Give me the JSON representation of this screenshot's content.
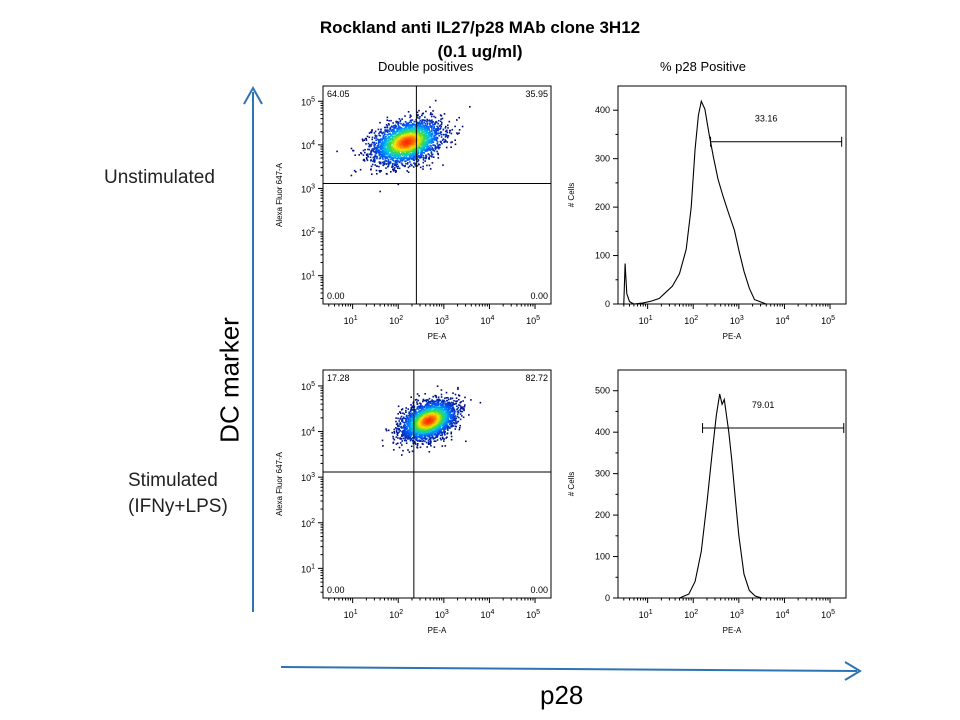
{
  "title_line1": "Rockland anti IL27/p28 MAb clone 3H12",
  "title_line2": "(0.1 ug/ml)",
  "column_headers": [
    "Double positives",
    "% p28 Positive"
  ],
  "row_labels": {
    "unstimulated": "Unstimulated",
    "stimulated_line1": "Stimulated",
    "stimulated_line2": "(IFNy+LPS)"
  },
  "y_arrow_label": "DC marker",
  "x_arrow_label": "p28",
  "colors": {
    "arrow": "#2e74b5",
    "density_low": "#000080",
    "density_mid": "#00a0ff",
    "density_high": "#ff3300"
  },
  "chart_data": [
    {
      "type": "scatter",
      "panel": "unstimulated-dotplot",
      "xlabel": "PE-A",
      "ylabel": "Alexa Fluor 647-A",
      "x_scale": "log",
      "y_scale": "log",
      "x_ticks": [
        "10^1",
        "10^2",
        "10^3",
        "10^4",
        "10^5"
      ],
      "y_ticks": [
        "10^1",
        "10^2",
        "10^3",
        "10^4",
        "10^5"
      ],
      "quadrant_gate": {
        "x": 250,
        "y": 1300
      },
      "population_center": {
        "x": 150,
        "y": 12000
      },
      "quadrant_values": {
        "upper_left": "64.05",
        "upper_right": "35.95",
        "lower_left": "0.00",
        "lower_right": "0.00"
      }
    },
    {
      "type": "line",
      "panel": "unstimulated-histogram",
      "xlabel": "PE-A",
      "ylabel": "# Cells",
      "x_scale": "log",
      "x_ticks": [
        "10^1",
        "10^2",
        "10^3",
        "10^4",
        "10^5"
      ],
      "y_ticks": [
        "0",
        "100",
        "200",
        "300",
        "400"
      ],
      "ylim": [
        0,
        450
      ],
      "series": [
        {
          "x": [
            3,
            3.2,
            3.5,
            4,
            5,
            8,
            12,
            18,
            25,
            35,
            50,
            70,
            90,
            110,
            130,
            150,
            180,
            220,
            280,
            350,
            450,
            600,
            800,
            1000,
            1300,
            1700,
            2200,
            3000,
            4000
          ],
          "values": [
            0,
            85,
            20,
            5,
            0,
            3,
            8,
            12,
            22,
            35,
            60,
            110,
            200,
            320,
            390,
            420,
            400,
            350,
            300,
            260,
            225,
            185,
            150,
            110,
            65,
            30,
            10,
            3,
            0
          ]
        }
      ],
      "gate": {
        "x_start": 240,
        "x_end": 180000,
        "level": 335,
        "value": "33.16"
      }
    },
    {
      "type": "scatter",
      "panel": "stimulated-dotplot",
      "xlabel": "PE-A",
      "ylabel": "Alexa Fluor 647-A",
      "x_scale": "log",
      "y_scale": "log",
      "x_ticks": [
        "10^1",
        "10^2",
        "10^3",
        "10^4",
        "10^5"
      ],
      "y_ticks": [
        "10^1",
        "10^2",
        "10^3",
        "10^4",
        "10^5"
      ],
      "quadrant_gate": {
        "x": 220,
        "y": 1300
      },
      "population_center": {
        "x": 450,
        "y": 18000
      },
      "quadrant_values": {
        "upper_left": "17.28",
        "upper_right": "82.72",
        "lower_left": "0.00",
        "lower_right": "0.00"
      }
    },
    {
      "type": "line",
      "panel": "stimulated-histogram",
      "xlabel": "PE-A",
      "ylabel": "# Cells",
      "x_scale": "log",
      "x_ticks": [
        "10^1",
        "10^2",
        "10^3",
        "10^4",
        "10^5"
      ],
      "y_ticks": [
        "0",
        "100",
        "200",
        "300",
        "400",
        "500"
      ],
      "ylim": [
        0,
        550
      ],
      "series": [
        {
          "x": [
            50,
            80,
            110,
            150,
            200,
            260,
            320,
            380,
            430,
            480,
            540,
            600,
            700,
            850,
            1000,
            1300,
            1700,
            2300,
            3200
          ],
          "values": [
            0,
            10,
            40,
            110,
            230,
            350,
            440,
            490,
            470,
            480,
            440,
            400,
            330,
            230,
            150,
            60,
            20,
            5,
            0
          ]
        }
      ],
      "gate": {
        "x_start": 160,
        "x_end": 200000,
        "level": 410,
        "value": "79.01"
      }
    }
  ]
}
